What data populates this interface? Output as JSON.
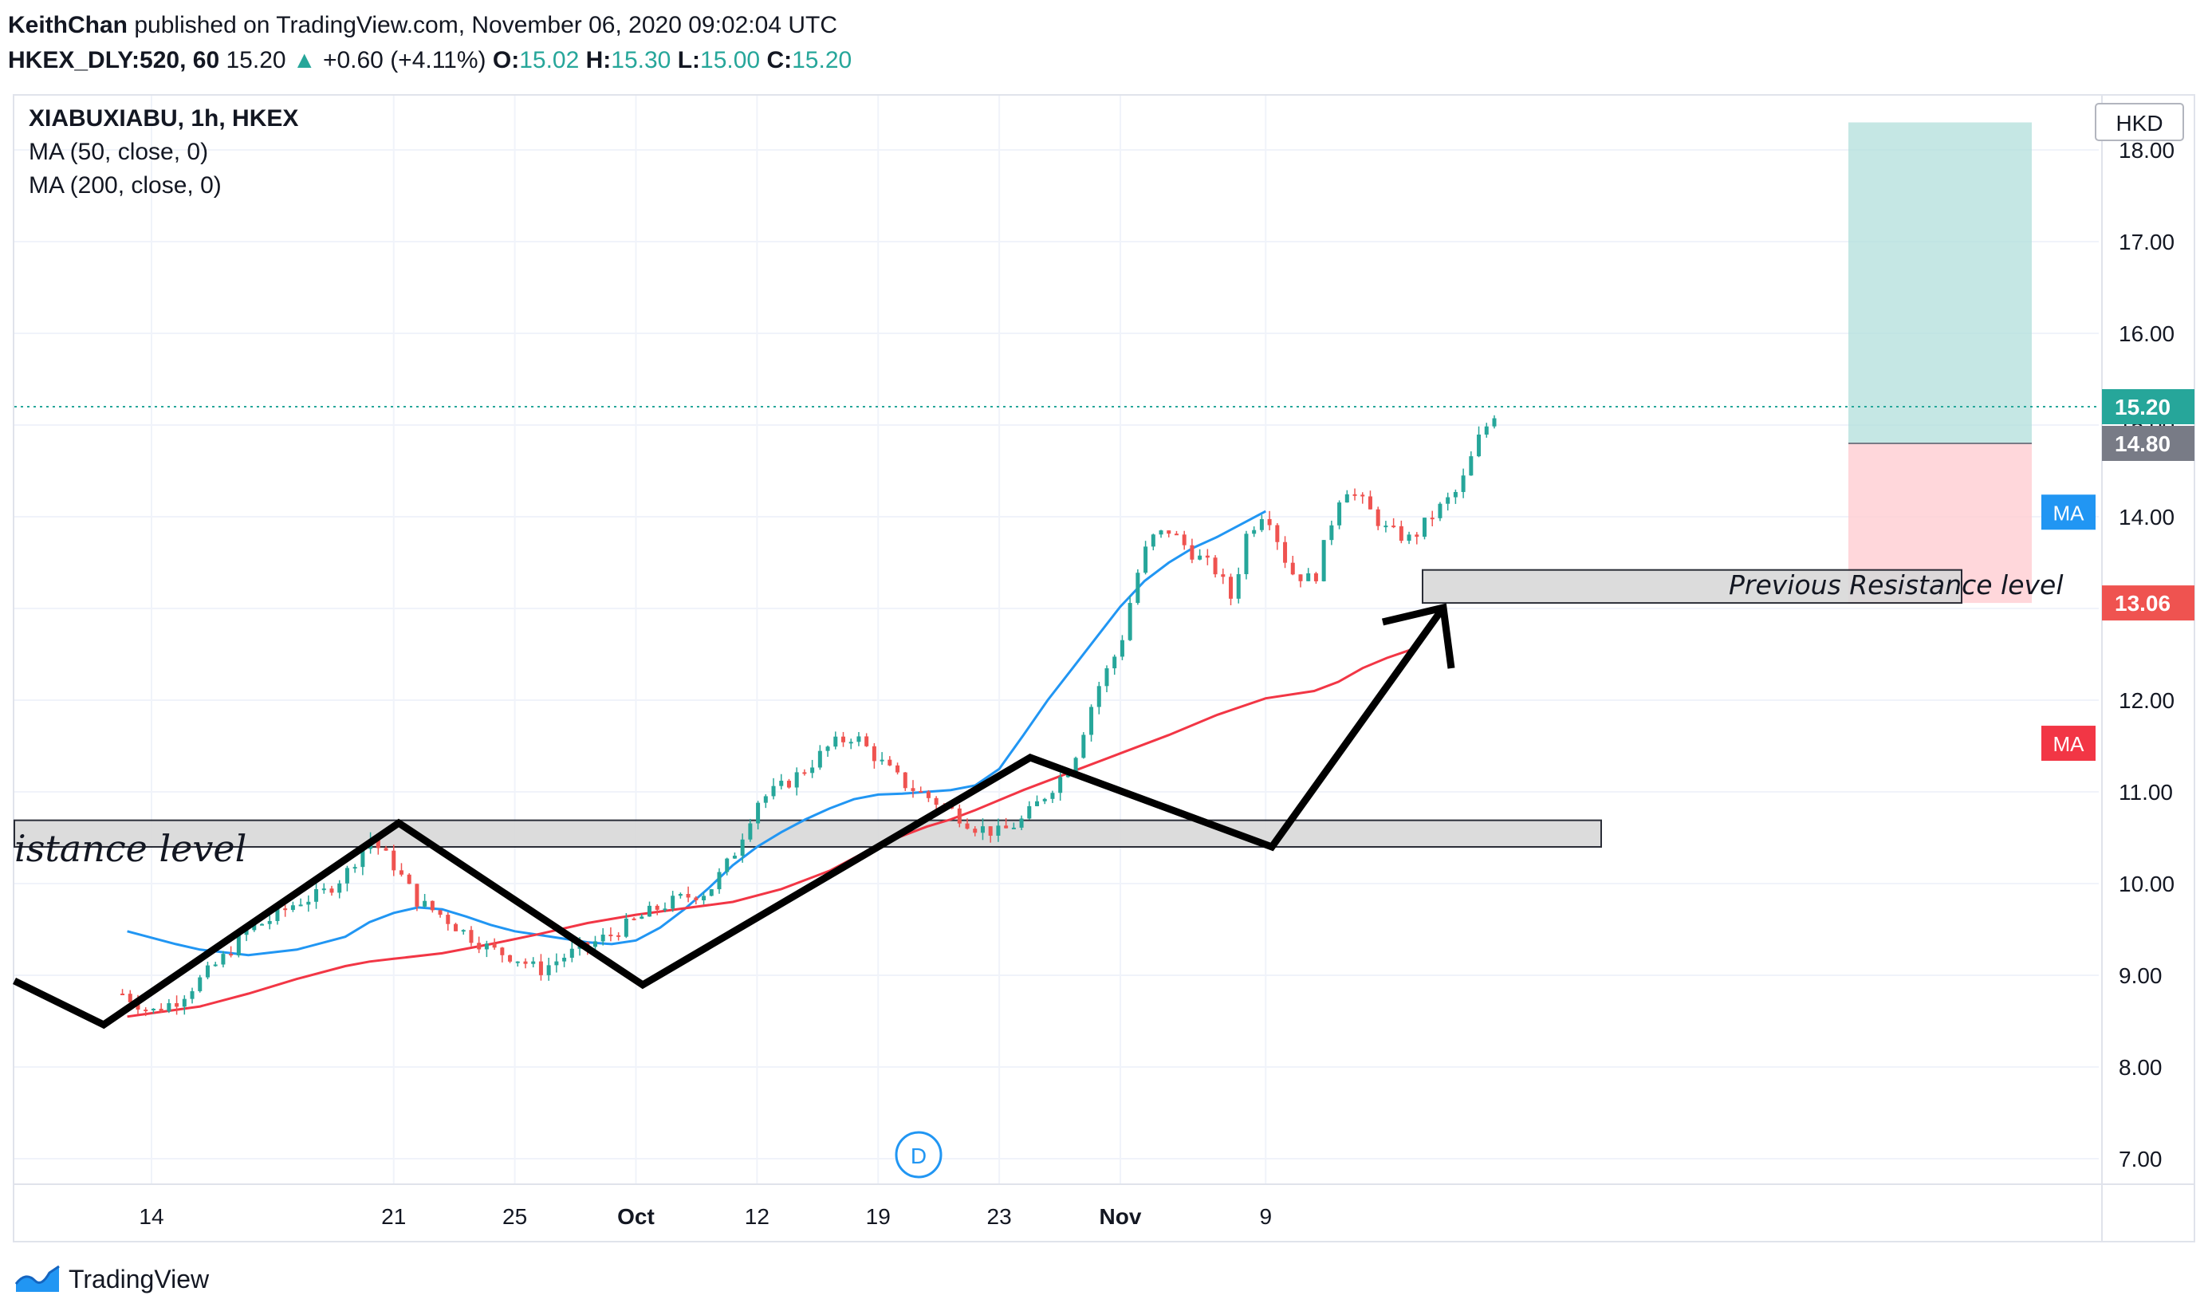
{
  "header": {
    "author": "KeithChan",
    "published_text": "published on TradingView.com, November 06, 2020 09:02:04 UTC",
    "symbol": "HKEX_DLY:520, 60",
    "last_price": "15.20",
    "change_arrow": "▲",
    "change": "+0.60 (+4.11%)",
    "open_label": "O:",
    "open": "15.02",
    "high_label": "H:",
    "high": "15.30",
    "low_label": "L:",
    "low": "15.00",
    "close_label": "C:",
    "close": "15.20"
  },
  "legend": {
    "symbol": "XIABUXIABU, 1h, HKEX",
    "ma1": "MA (50, close, 0)",
    "ma2": "MA (200, close, 0)"
  },
  "footer": {
    "brand": "TradingView"
  },
  "colors": {
    "up": "#26a69a",
    "down": "#ef5350",
    "ma50": "#2196f3",
    "ma200": "#f23645",
    "target_zone": "#b2dfdb",
    "stop_zone": "#ffcdd2",
    "grid": "#f0f3fa",
    "text": "#131722"
  },
  "chart_data": {
    "type": "candlestick",
    "currency": "HKD",
    "y_ticks": [
      "7.00",
      "8.00",
      "9.00",
      "10.00",
      "11.00",
      "12.00",
      "13.00",
      "14.00",
      "15.00",
      "16.00",
      "17.00",
      "18.00"
    ],
    "ylim": [
      6.7,
      18.5
    ],
    "x_ticks": [
      "14",
      "21",
      "25",
      "Oct",
      "12",
      "19",
      "23",
      "Nov",
      "9"
    ],
    "last_price": 15.2,
    "price_labels": [
      {
        "text": "15.20",
        "value": 15.2,
        "kind": "last"
      },
      {
        "text": "14.80",
        "value": 14.8,
        "kind": "entry"
      },
      {
        "text": "13.06",
        "value": 13.06,
        "kind": "stop"
      }
    ],
    "position": {
      "entry": 14.8,
      "target": 18.3,
      "stop": 13.06
    },
    "ma_badges": [
      "MA",
      "MA"
    ],
    "session_marker": "D",
    "series": [
      {
        "name": "MA (50, close, 0)",
        "points": [
          [
            -0.5,
            9.48
          ],
          [
            0.5,
            9.34
          ],
          [
            1,
            9.28
          ],
          [
            2,
            9.22
          ],
          [
            3,
            9.28
          ],
          [
            4,
            9.42
          ],
          [
            4.5,
            9.58
          ],
          [
            5,
            9.68
          ],
          [
            5.5,
            9.74
          ],
          [
            6,
            9.72
          ],
          [
            6.5,
            9.64
          ],
          [
            7,
            9.55
          ],
          [
            7.5,
            9.48
          ],
          [
            8,
            9.44
          ],
          [
            8.5,
            9.4
          ],
          [
            9,
            9.36
          ],
          [
            9.5,
            9.34
          ],
          [
            10,
            9.38
          ],
          [
            10.5,
            9.52
          ],
          [
            11,
            9.72
          ],
          [
            11.5,
            9.95
          ],
          [
            12,
            10.2
          ],
          [
            12.5,
            10.4
          ],
          [
            13,
            10.56
          ],
          [
            13.5,
            10.7
          ],
          [
            14,
            10.82
          ],
          [
            14.5,
            10.92
          ],
          [
            15,
            10.97
          ],
          [
            15.5,
            10.98
          ],
          [
            16,
            11.0
          ],
          [
            16.5,
            11.02
          ],
          [
            17,
            11.07
          ],
          [
            17.5,
            11.25
          ],
          [
            18,
            11.62
          ],
          [
            18.5,
            12.0
          ],
          [
            19,
            12.34
          ],
          [
            19.5,
            12.68
          ],
          [
            20,
            13.02
          ],
          [
            20.5,
            13.3
          ],
          [
            21,
            13.5
          ],
          [
            21.5,
            13.66
          ],
          [
            22,
            13.78
          ],
          [
            22.5,
            13.92
          ],
          [
            23,
            14.06
          ]
        ]
      },
      {
        "name": "MA (200, close, 0)",
        "points": [
          [
            -0.5,
            8.55
          ],
          [
            1,
            8.66
          ],
          [
            2,
            8.8
          ],
          [
            3,
            8.96
          ],
          [
            4,
            9.1
          ],
          [
            4.5,
            9.15
          ],
          [
            5,
            9.18
          ],
          [
            6,
            9.24
          ],
          [
            7,
            9.34
          ],
          [
            8,
            9.45
          ],
          [
            9,
            9.57
          ],
          [
            10,
            9.66
          ],
          [
            11,
            9.73
          ],
          [
            12,
            9.8
          ],
          [
            13,
            9.94
          ],
          [
            14,
            10.14
          ],
          [
            15,
            10.42
          ],
          [
            16,
            10.62
          ],
          [
            16.5,
            10.7
          ],
          [
            17,
            10.8
          ],
          [
            18,
            11.02
          ],
          [
            19,
            11.22
          ],
          [
            20,
            11.42
          ],
          [
            21,
            11.62
          ],
          [
            22,
            11.84
          ],
          [
            23,
            12.02
          ],
          [
            24,
            12.1
          ],
          [
            24.5,
            12.2
          ],
          [
            25,
            12.35
          ],
          [
            25.5,
            12.46
          ],
          [
            26,
            12.55
          ]
        ]
      }
    ],
    "annotations": [
      {
        "type": "text",
        "text": "istance level"
      },
      {
        "type": "text",
        "text": "Previous Resistance level"
      }
    ]
  }
}
